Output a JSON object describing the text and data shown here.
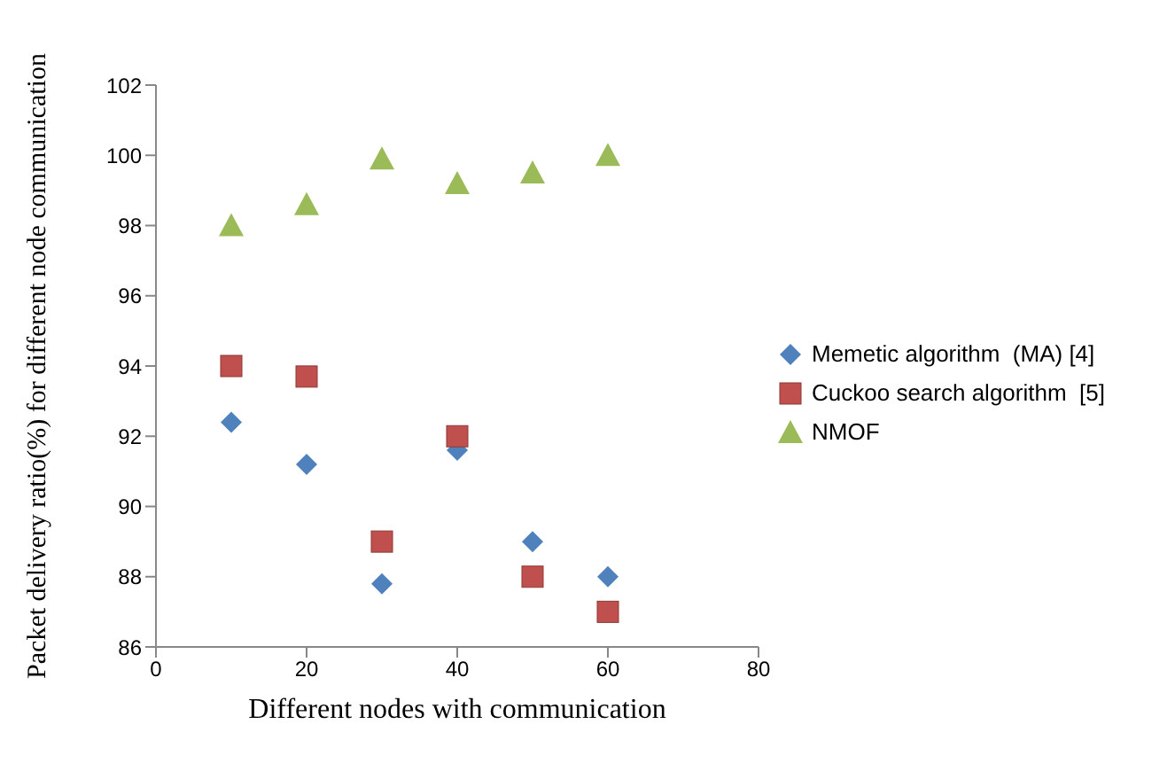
{
  "chart_data": {
    "type": "scatter",
    "xlabel": "Different nodes with communication",
    "ylabel": "Packet delivery ratio(%) for different node communication",
    "x": [
      10,
      20,
      30,
      40,
      50,
      60
    ],
    "series": [
      {
        "name": "Memetic algorithm  (MA) [4]",
        "color": "#4f81bd",
        "marker": "diamond",
        "values": [
          92.4,
          91.2,
          87.8,
          91.6,
          89.0,
          88.0
        ]
      },
      {
        "name": "Cuckoo search algorithm  [5]",
        "color": "#c0504d",
        "marker": "square",
        "values": [
          94.0,
          93.7,
          89.0,
          92.0,
          88.0,
          87.0
        ]
      },
      {
        "name": "NMOF",
        "color": "#9bbb59",
        "marker": "triangle",
        "values": [
          98.0,
          98.6,
          99.9,
          99.2,
          99.5,
          100.0
        ]
      }
    ],
    "xlim": [
      0,
      80
    ],
    "xticks": [
      0,
      20,
      40,
      60,
      80
    ],
    "ylim": [
      86,
      102
    ],
    "yticks": [
      86,
      88,
      90,
      92,
      94,
      96,
      98,
      100,
      102
    ],
    "grid": false,
    "legend": "right"
  }
}
